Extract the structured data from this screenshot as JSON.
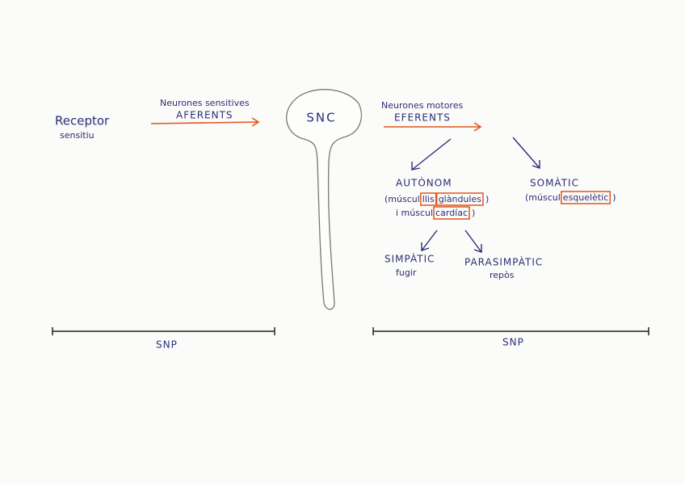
{
  "receptor": {
    "lines": [
      "Receptor",
      "sensitiu"
    ]
  },
  "afferent": {
    "label": "Neurones sensitives",
    "name": "AFERENTS"
  },
  "center": {
    "label": "SNC"
  },
  "efferent": {
    "label": "Neurones motores",
    "name": "EFERENTS"
  },
  "autonom": {
    "title": "AUTÒNOM",
    "lines": [
      [
        {
          "text": "(múscul"
        },
        {
          "text": "llis",
          "highlight": true
        },
        {
          "text": "glàndules",
          "highlight": true
        },
        {
          "text": ")"
        }
      ],
      [
        {
          "text": "i múscul"
        },
        {
          "text": "cardíac",
          "highlight": true
        },
        {
          "text": ")"
        }
      ]
    ]
  },
  "somatic": {
    "title": "SOMÀTIC",
    "lines": [
      [
        {
          "text": "(múscul"
        },
        {
          "text": "esquelètic",
          "highlight": true
        },
        {
          "text": ")"
        }
      ]
    ]
  },
  "simpatic": {
    "title": "SIMPÀTIC",
    "note": "fugir"
  },
  "parasimpatic": {
    "title": "PARASIMPÀTIC",
    "note": "repòs"
  },
  "snp_left": {
    "label": "SNP"
  },
  "snp_right": {
    "label": "SNP"
  }
}
